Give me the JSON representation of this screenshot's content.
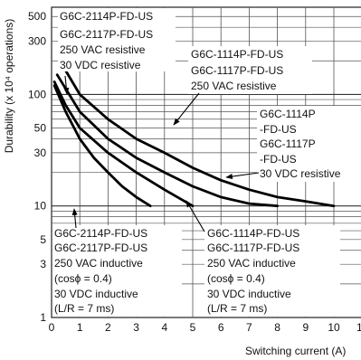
{
  "chart_data": {
    "type": "line",
    "xlabel": "Switching current (A)",
    "ylabel": "Durability (x 10⁴ operations)",
    "x_ticks": [
      "0",
      "1",
      "2",
      "3",
      "4",
      "5",
      "6",
      "7",
      "8",
      "9",
      "10",
      "11"
    ],
    "y_ticks": [
      "1",
      "3",
      "5",
      "10",
      "30",
      "50",
      "100",
      "300",
      "500"
    ],
    "xlim": [
      0,
      11
    ],
    "ylim": [
      1,
      500
    ],
    "y_scale": "log",
    "grid": true,
    "series": [
      {
        "name": "250 VAC inductive (G6C-2114P/2117P)",
        "x": [
          0.1,
          0.5,
          1,
          1.5,
          2,
          2.5,
          3,
          3.5
        ],
        "y": [
          120,
          70,
          40,
          27,
          20,
          15,
          12,
          10
        ]
      },
      {
        "name": "30 VDC inductive (G6C-2114P/2117P)",
        "x": [
          0.1,
          0.5,
          1,
          2,
          3,
          4,
          5
        ],
        "y": [
          130,
          80,
          50,
          30,
          20,
          14,
          10
        ]
      },
      {
        "name": "250 VAC resistive (G6C-2114P/2117P)",
        "x": [
          0.2,
          1,
          2,
          3,
          4,
          5,
          6,
          7,
          8
        ],
        "y": [
          150,
          70,
          40,
          27,
          20,
          15,
          12,
          10.5,
          10
        ]
      },
      {
        "name": "30 VDC resistive (G6C-2114P/2117P)",
        "x": [
          0.4,
          1,
          2,
          3,
          4,
          5,
          6,
          7,
          8,
          9,
          10
        ],
        "y": [
          180,
          100,
          60,
          40,
          30,
          22,
          17,
          14,
          12,
          11,
          10
        ]
      }
    ],
    "annotations": {
      "top_left": [
        "G6C-2114P-FD-US",
        "G6C-2117P-FD-US",
        "250 VAC resistive",
        "30 VDC resistive"
      ],
      "top_right": [
        "G6C-1114P-FD-US",
        "G6C-1117P-FD-US",
        "250 VAC resistive"
      ],
      "mid_right": [
        "G6C-1114P",
        "-FD-US",
        "G6C-1117P",
        "-FD-US",
        "30 VDC resistive"
      ],
      "bottom_left": [
        "G6C-2114P-FD-US",
        "G6C-2117P-FD-US",
        "250 VAC inductive",
        "(cosϕ = 0.4)",
        "30 VDC inductive",
        "(L/R = 7 ms)"
      ],
      "bottom_right": [
        "G6C-1114P-FD-US",
        "G6C-1117P-FD-US",
        "250 VAC inductive",
        "(cosϕ = 0.4)",
        "30 VDC inductive",
        "(L/R = 7 ms)"
      ]
    }
  }
}
